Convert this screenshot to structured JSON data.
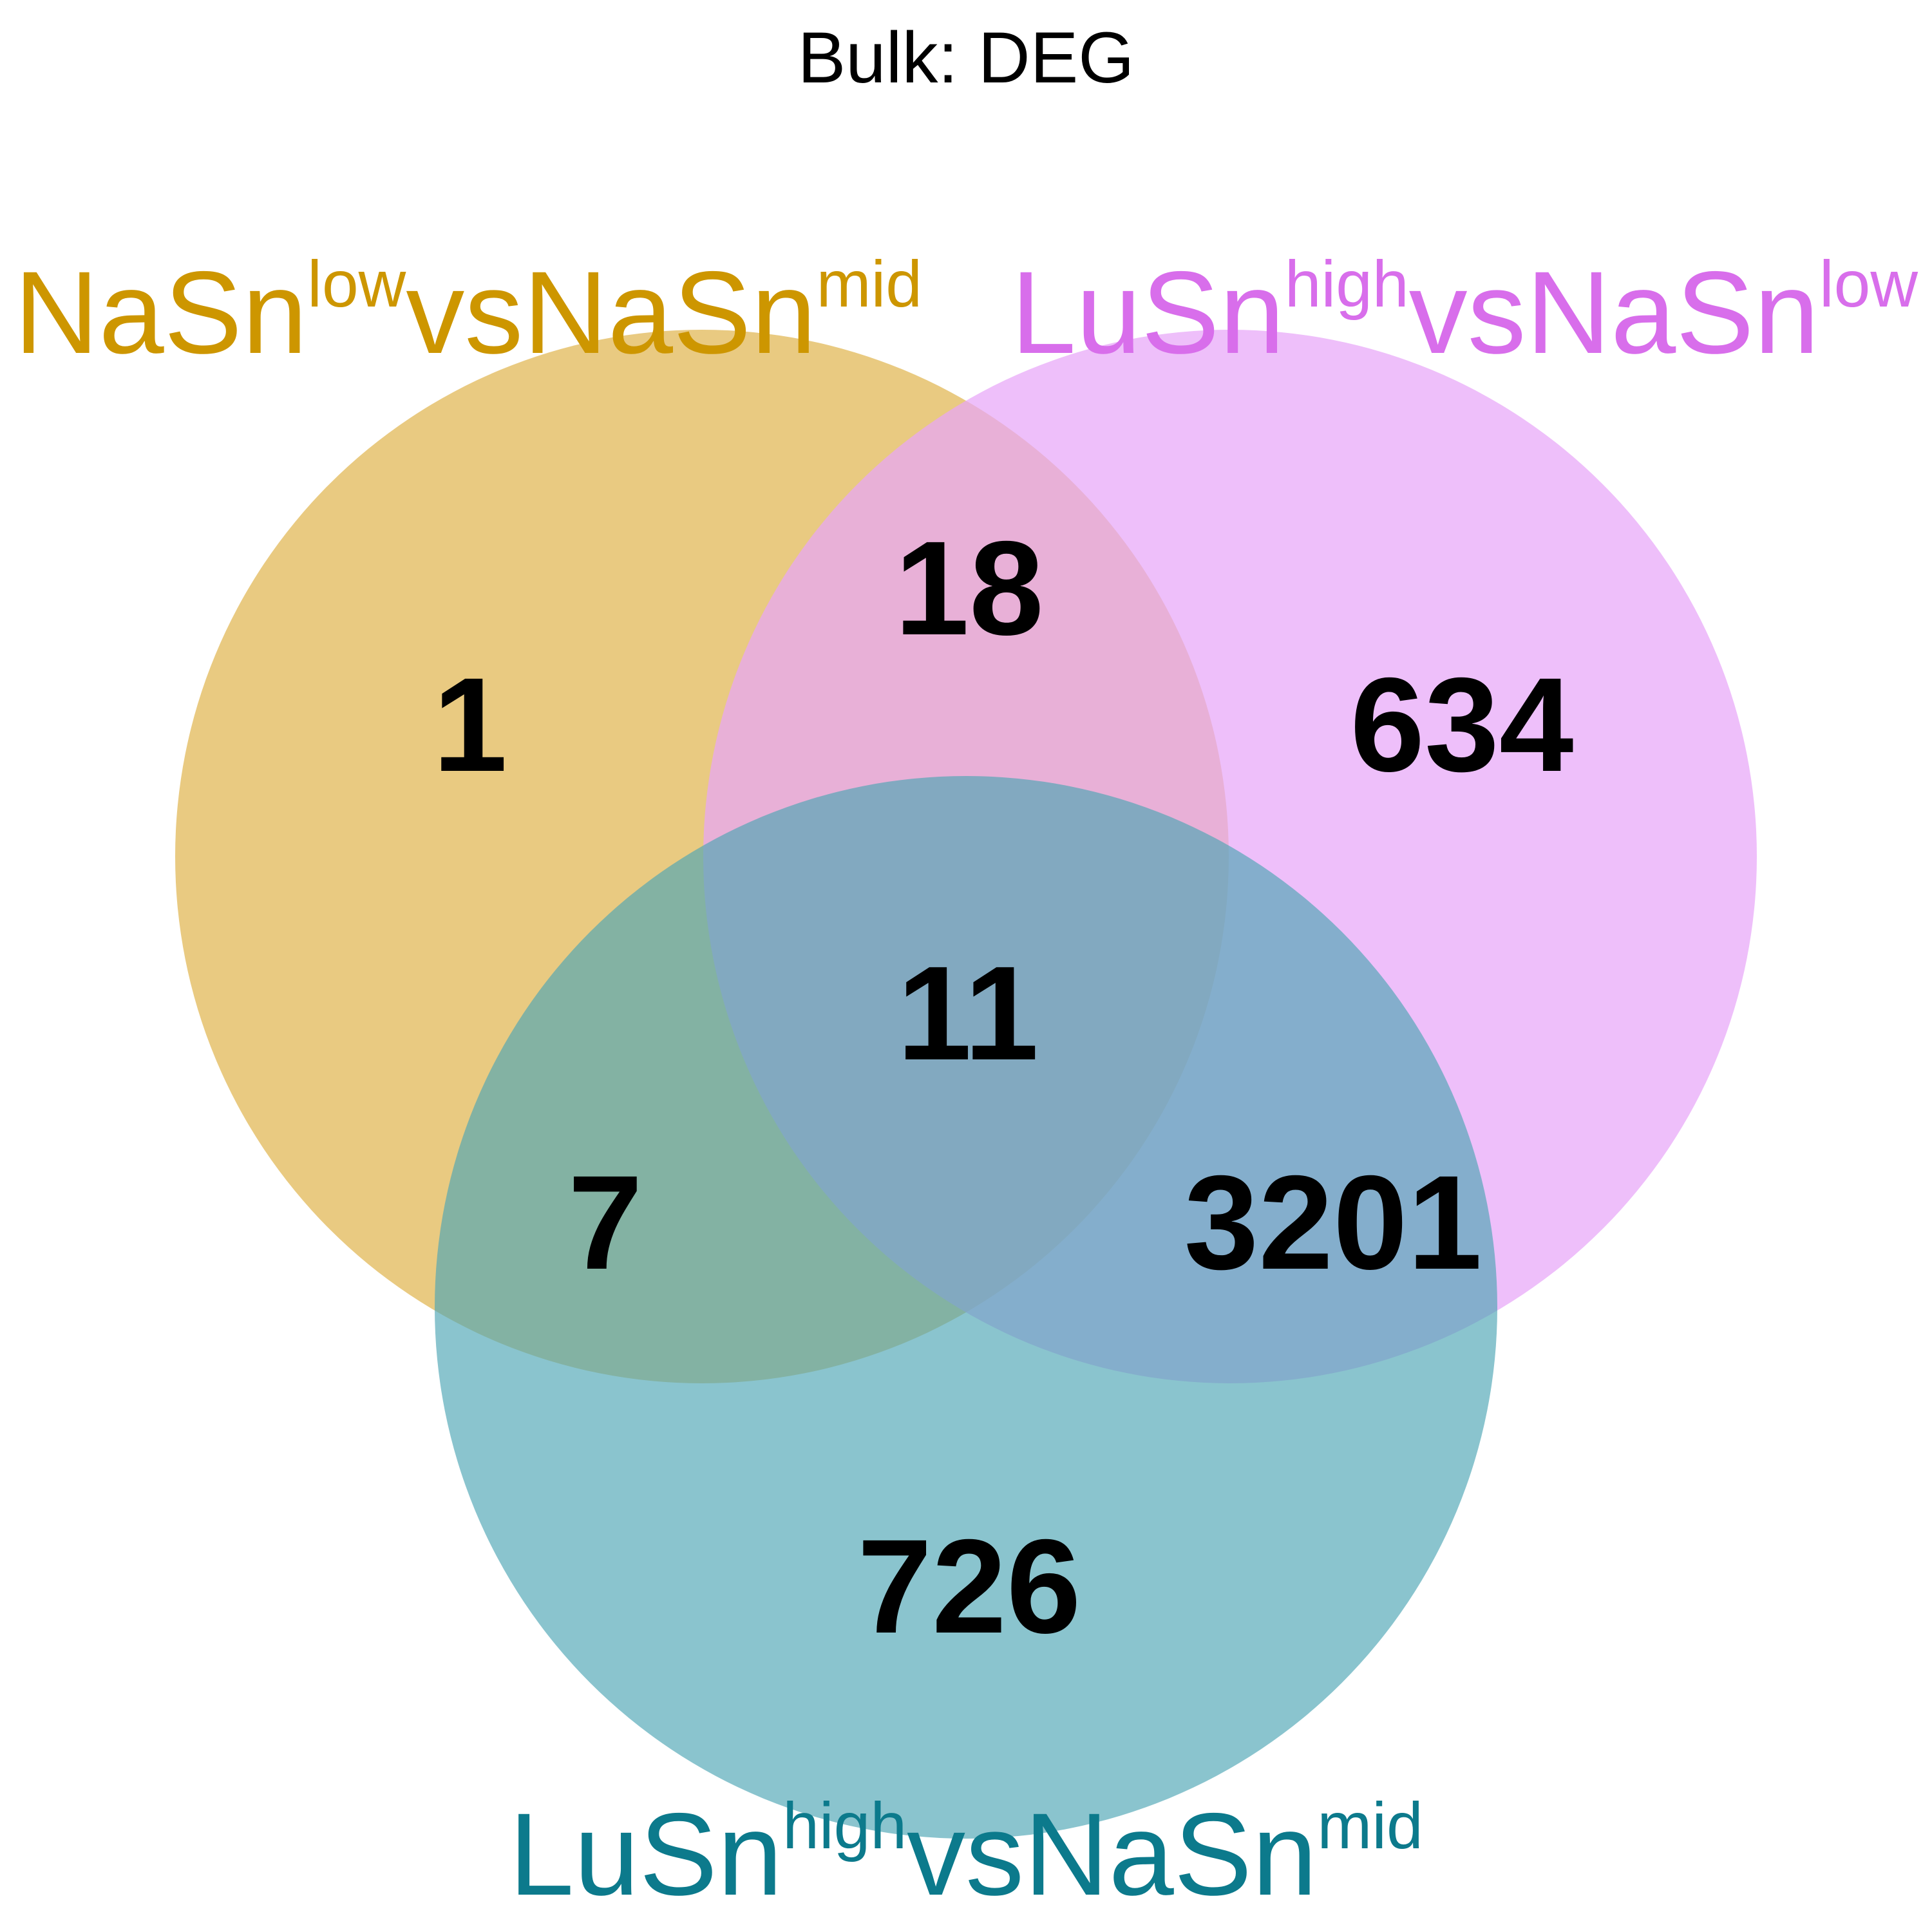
{
  "title": "Bulk: DEG",
  "sets": [
    {
      "id": "A",
      "label_parts": [
        {
          "text": "NaSn",
          "sup": false
        },
        {
          "text": "low",
          "sup": true
        },
        {
          "text": "vsNaSn",
          "sup": false
        },
        {
          "text": "mid",
          "sup": true
        }
      ],
      "color": "#CD9600",
      "fill": "#E0B550"
    },
    {
      "id": "B",
      "label_parts": [
        {
          "text": "LuSn",
          "sup": false
        },
        {
          "text": "high",
          "sup": true
        },
        {
          "text": "vsNaSn",
          "sup": false
        },
        {
          "text": "low",
          "sup": true
        }
      ],
      "color": "#D86EEB",
      "fill": "#E8A6F8"
    },
    {
      "id": "C",
      "label_parts": [
        {
          "text": "LuSn",
          "sup": false
        },
        {
          "text": "high",
          "sup": true
        },
        {
          "text": "vsNaSn",
          "sup": false
        },
        {
          "text": "mid",
          "sup": true
        }
      ],
      "color": "#0C7A8C",
      "fill": "#4EA6B4"
    }
  ],
  "regions": [
    {
      "sets": [
        "A"
      ],
      "count": "1"
    },
    {
      "sets": [
        "A",
        "B"
      ],
      "count": "18"
    },
    {
      "sets": [
        "B"
      ],
      "count": "634"
    },
    {
      "sets": [
        "A",
        "B",
        "C"
      ],
      "count": "11"
    },
    {
      "sets": [
        "A",
        "C"
      ],
      "count": "7"
    },
    {
      "sets": [
        "B",
        "C"
      ],
      "count": "3201"
    },
    {
      "sets": [
        "C"
      ],
      "count": "726"
    }
  ]
}
